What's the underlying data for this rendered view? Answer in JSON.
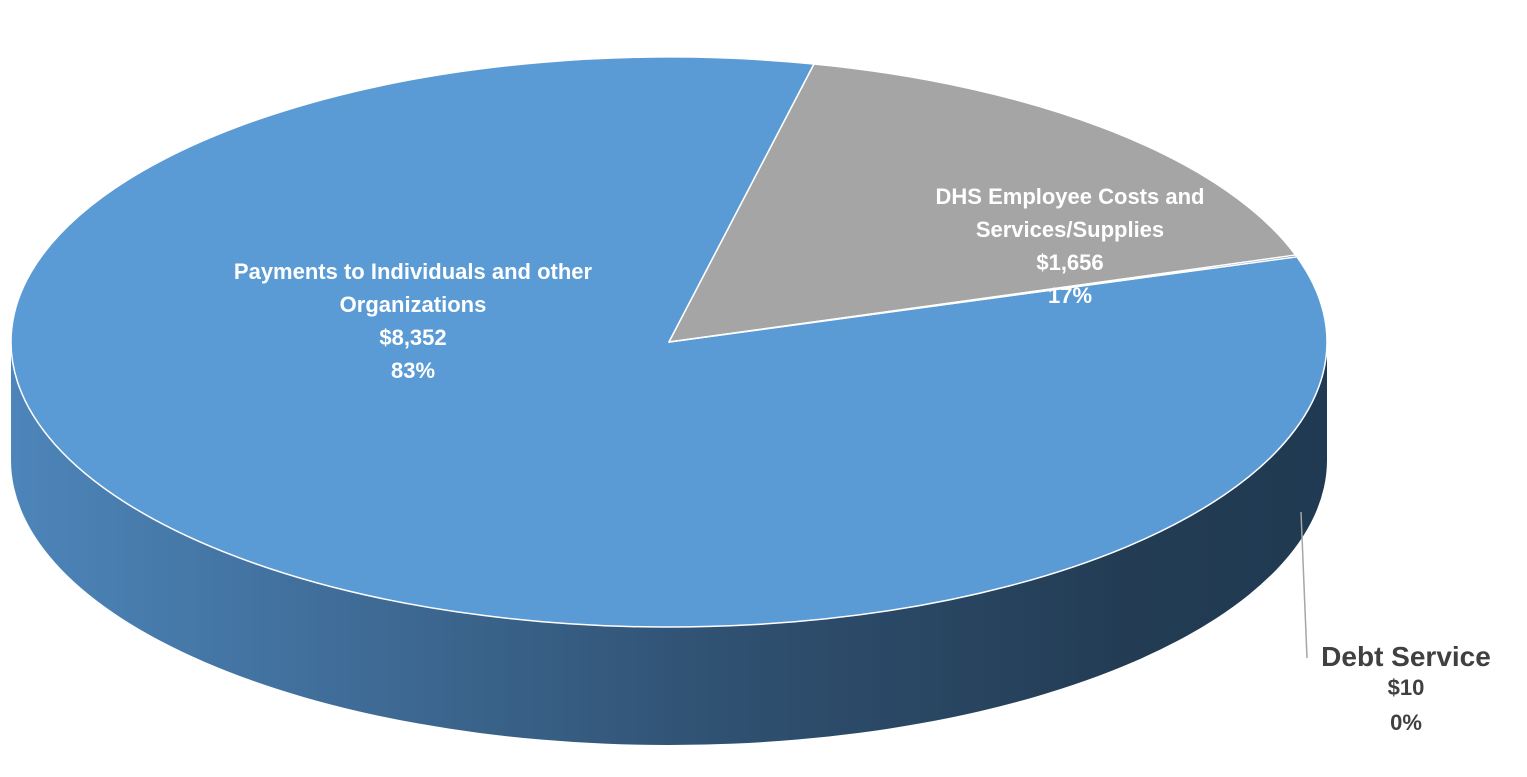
{
  "chart_data": {
    "type": "pie",
    "style": "3d",
    "title": "",
    "slices": [
      {
        "name": "Payments to Individuals and other Organizations",
        "name_lines": [
          "Payments to Individuals and other",
          "Organizations"
        ],
        "value": 8352,
        "value_label": "$8,352",
        "percent_label": "83%",
        "color": "#5b9bd5"
      },
      {
        "name": "DHS Employee Costs and Services/Supplies",
        "name_lines": [
          "DHS Employee Costs and",
          "Services/Supplies"
        ],
        "value": 1656,
        "value_label": "$1,656",
        "percent_label": "17%",
        "color": "#a5a5a5"
      },
      {
        "name": "Debt Service",
        "name_lines": [
          "Debt Service"
        ],
        "value": 10,
        "value_label": "$10",
        "percent_label": "0%",
        "color": "#264478"
      }
    ],
    "label_colors": {
      "inside": "#ffffff",
      "outside": "#404040"
    }
  }
}
